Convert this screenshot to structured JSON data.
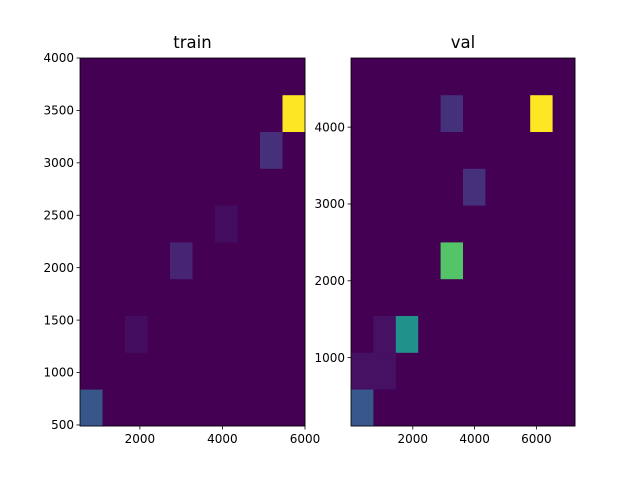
{
  "chart_data": [
    {
      "type": "heatmap",
      "title": "train",
      "xlim": [
        550,
        6000
      ],
      "ylim": [
        490,
        4000
      ],
      "x_edges": [
        550,
        1095,
        1640,
        2185,
        2730,
        3275,
        3820,
        4365,
        4910,
        5455,
        6000
      ],
      "y_edges": [
        490,
        841,
        1192,
        1543,
        1894,
        2245,
        2596,
        2947,
        3298,
        3649,
        4000
      ],
      "xticks": [
        2000,
        4000,
        6000
      ],
      "yticks": [
        500,
        1000,
        1500,
        2000,
        2500,
        3000,
        3500,
        4000
      ],
      "counts": [
        [
          8,
          0,
          0,
          0,
          0,
          0,
          0,
          0,
          0,
          0
        ],
        [
          0,
          0,
          0,
          0,
          0,
          0,
          0,
          0,
          0,
          0
        ],
        [
          0,
          0,
          1,
          0,
          0,
          0,
          0,
          0,
          0,
          0
        ],
        [
          0,
          0,
          0,
          0,
          0,
          0,
          0,
          0,
          0,
          0
        ],
        [
          0,
          0,
          0,
          0,
          3,
          0,
          0,
          0,
          0,
          0
        ],
        [
          0,
          0,
          0,
          0,
          0,
          0,
          1,
          0,
          0,
          0
        ],
        [
          0,
          0,
          0,
          0,
          0,
          0,
          0,
          0,
          0,
          0
        ],
        [
          0,
          0,
          0,
          0,
          0,
          0,
          0,
          0,
          4,
          0
        ],
        [
          0,
          0,
          0,
          0,
          0,
          0,
          0,
          0,
          0,
          30
        ],
        [
          0,
          0,
          0,
          0,
          0,
          0,
          0,
          0,
          0,
          0
        ]
      ],
      "vmax": 30
    },
    {
      "type": "heatmap",
      "title": "val",
      "xlim": [
        0,
        7250
      ],
      "ylim": [
        110,
        4900
      ],
      "x_edges": [
        0,
        725,
        1450,
        2175,
        2900,
        3625,
        4350,
        5075,
        5800,
        6525,
        7250
      ],
      "y_edges": [
        110,
        589,
        1068,
        1547,
        2026,
        2505,
        2984,
        3463,
        3942,
        4421,
        4900
      ],
      "xticks": [
        2000,
        4000,
        6000
      ],
      "yticks": [
        1000,
        2000,
        3000,
        4000
      ],
      "counts": [
        [
          6,
          0,
          0,
          0,
          0,
          0,
          0,
          0,
          0,
          0
        ],
        [
          1,
          1,
          0,
          0,
          0,
          0,
          0,
          0,
          0,
          0
        ],
        [
          0,
          1,
          11,
          0,
          0,
          0,
          0,
          0,
          0,
          0
        ],
        [
          0,
          0,
          0,
          0,
          0,
          0,
          0,
          0,
          0,
          0
        ],
        [
          0,
          0,
          0,
          0,
          16,
          0,
          0,
          0,
          0,
          0
        ],
        [
          0,
          0,
          0,
          0,
          0,
          0,
          0,
          0,
          0,
          0
        ],
        [
          0,
          0,
          0,
          0,
          0,
          3,
          0,
          0,
          0,
          0
        ],
        [
          0,
          0,
          0,
          0,
          0,
          0,
          0,
          0,
          0,
          0
        ],
        [
          0,
          0,
          0,
          0,
          3,
          0,
          0,
          0,
          22,
          0
        ],
        [
          0,
          0,
          0,
          0,
          0,
          0,
          0,
          0,
          0,
          0
        ]
      ],
      "vmax": 22
    }
  ],
  "colormap": "viridis"
}
